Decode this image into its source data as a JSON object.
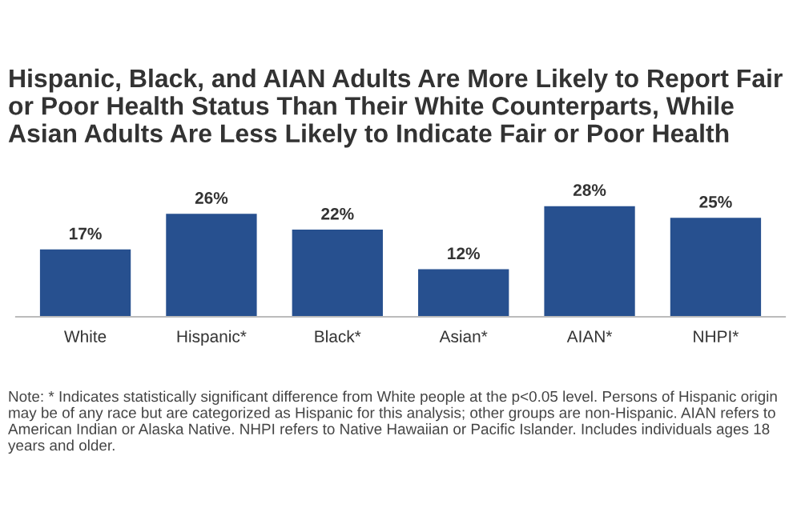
{
  "chart_data": {
    "type": "bar",
    "title": "Hispanic, Black, and AIAN Adults Are More Likely to Report Fair or Poor Health Status Than Their White Counterparts, While Asian Adults Are Less Likely to Indicate Fair or Poor Health",
    "categories": [
      "White",
      "Hispanic*",
      "Black*",
      "Asian*",
      "AIAN*",
      "NHPI*"
    ],
    "values": [
      17,
      26,
      22,
      12,
      28,
      25
    ],
    "value_labels": [
      "17%",
      "26%",
      "22%",
      "12%",
      "28%",
      "25%"
    ],
    "color": "#27508f",
    "grid": false,
    "legend": false,
    "annotations": [
      "Note: * Indicates statistically significant difference from White people at the p<0.05 level. Persons of Hispanic origin may be of any race but are categorized as Hispanic for this analysis; other groups are non-Hispanic. AIAN refers to American Indian or Alaska Native. NHPI refers to Native Hawaiian or Pacific Islander. Includes individuals ages 18 years and older."
    ]
  }
}
